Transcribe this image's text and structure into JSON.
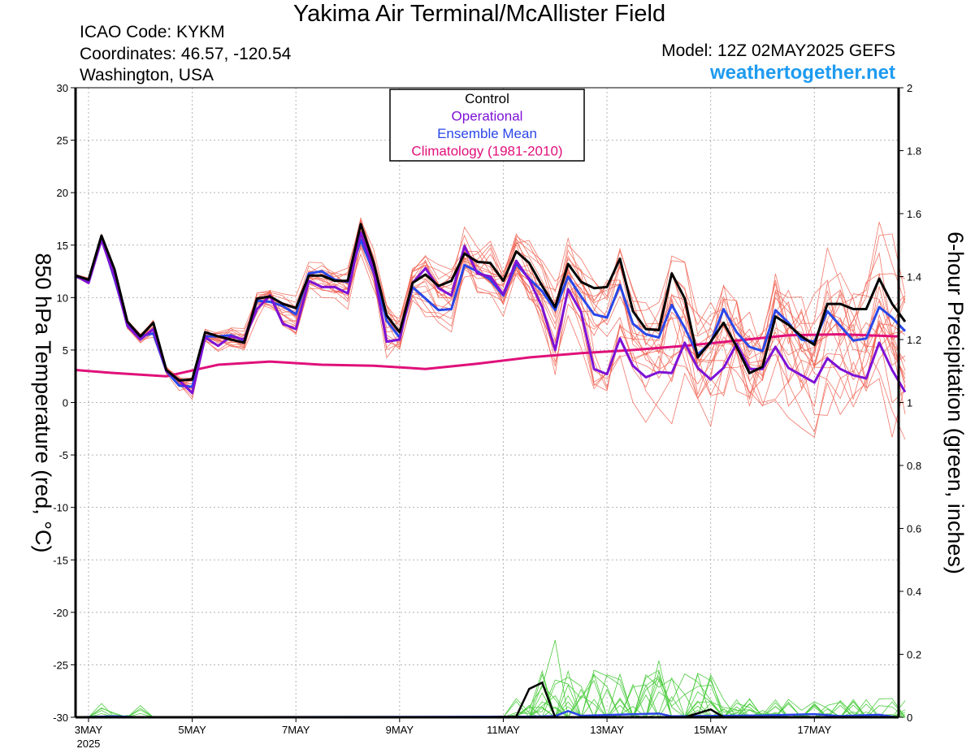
{
  "header": {
    "title": "Yakima Air Terminal/McAllister Field",
    "icao": "ICAO Code: KYKM",
    "coords": "Coordinates: 46.57, -120.54",
    "region": "Washington, USA",
    "model": "Model: 12Z 02MAY2025 GEFS",
    "site": "weathertogether.net"
  },
  "colors": {
    "control": "#000000",
    "operational": "#7d12d6",
    "mean": "#2a47e8",
    "climatology": "#e0107a",
    "members": "#f06050",
    "precip_members": "#4ccc3f"
  },
  "chart_data": {
    "type": "line",
    "title": "Yakima Air Terminal/McAllister Field",
    "ylabel": "850 hPa Temperature (red, °C)",
    "y2label": "6-hour Precipitation (green, inches)",
    "ylim": [
      -30,
      30
    ],
    "y2lim": [
      0,
      2
    ],
    "yticks": [
      -30,
      -25,
      -20,
      -15,
      -10,
      -5,
      0,
      5,
      10,
      15,
      20,
      25,
      30
    ],
    "y2ticks": [
      "0",
      "0.2",
      "0.4",
      "0.6",
      "0.8",
      "1",
      "1.2",
      "1.4",
      "1.6",
      "1.8",
      "2"
    ],
    "xlim": [
      2.75,
      18.625
    ],
    "xticks": [
      {
        "day": 3,
        "label": "3MAY",
        "sub": "2025"
      },
      {
        "day": 5,
        "label": "5MAY"
      },
      {
        "day": 7,
        "label": "7MAY"
      },
      {
        "day": 9,
        "label": "9MAY"
      },
      {
        "day": 11,
        "label": "11MAY"
      },
      {
        "day": 13,
        "label": "13MAY"
      },
      {
        "day": 15,
        "label": "15MAY"
      },
      {
        "day": 17,
        "label": "17MAY"
      }
    ],
    "grid": true,
    "legend_position": "top-center",
    "legend": [
      "Control",
      "Operational",
      "Ensemble Mean",
      "Climatology (1981-2010)"
    ],
    "x_start": 2.75,
    "x_step": 0.25,
    "series": [
      {
        "name": "Control",
        "values": [
          12.1,
          11.7,
          15.9,
          12.7,
          7.7,
          6.3,
          7.6,
          3.1,
          2.1,
          2.2,
          6.7,
          6.3,
          6.0,
          5.7,
          9.9,
          10.1,
          9.4,
          9.0,
          12.1,
          12.1,
          11.6,
          11.6,
          17.0,
          13.3,
          8.3,
          6.7,
          11.4,
          12.2,
          11.1,
          11.6,
          14.2,
          13.4,
          13.3,
          11.6,
          14.4,
          13.3,
          11.1,
          9.1,
          13.2,
          11.5,
          10.9,
          11.0,
          13.7,
          8.7,
          7.0,
          6.9,
          12.3,
          9.9,
          4.3,
          5.8,
          7.6,
          5.3,
          2.8,
          3.4,
          8.2,
          7.4,
          6.3,
          5.5,
          9.4,
          9.4,
          8.9,
          8.9,
          11.8,
          9.4,
          7.7
        ]
      },
      {
        "name": "Operational",
        "values": [
          12.1,
          11.4,
          15.5,
          12.0,
          7.3,
          6.0,
          7.0,
          3.0,
          2.1,
          0.9,
          6.2,
          5.4,
          6.3,
          6.0,
          8.9,
          10.2,
          7.5,
          7.0,
          11.6,
          11.0,
          11.0,
          10.4,
          16.2,
          12.6,
          5.8,
          6.0,
          11.4,
          12.8,
          10.9,
          10.2,
          14.9,
          12.3,
          12.0,
          10.3,
          13.5,
          11.7,
          9.1,
          5.0,
          10.8,
          8.6,
          3.2,
          2.7,
          6.1,
          3.5,
          2.4,
          2.9,
          2.8,
          5.7,
          3.3,
          2.2,
          3.3,
          5.6,
          3.2,
          3.2,
          5.3,
          3.3,
          2.6,
          1.9,
          4.2,
          3.2,
          2.6,
          2.3,
          5.7,
          3.1,
          1.0
        ]
      },
      {
        "name": "Ensemble Mean",
        "values": [
          12.0,
          11.6,
          15.7,
          11.8,
          7.5,
          6.3,
          6.6,
          3.0,
          1.6,
          1.5,
          6.3,
          6.3,
          6.4,
          5.9,
          9.7,
          9.6,
          9.2,
          8.4,
          12.3,
          12.5,
          11.7,
          11.5,
          15.5,
          12.4,
          7.8,
          6.2,
          11.0,
          9.9,
          8.8,
          8.9,
          13.1,
          12.5,
          11.7,
          10.2,
          13.2,
          11.8,
          10.6,
          8.8,
          12.0,
          10.1,
          8.4,
          8.1,
          11.2,
          7.5,
          6.5,
          6.2,
          9.3,
          7.1,
          4.6,
          5.7,
          8.9,
          6.7,
          5.3,
          4.9,
          8.8,
          7.6,
          6.0,
          5.8,
          8.7,
          7.3,
          5.9,
          6.1,
          9.1,
          8.1,
          6.8
        ]
      }
    ],
    "climatology": {
      "name": "Climatology (1981-2010)",
      "x": [
        2.75,
        3.5,
        4.5,
        5.5,
        6.5,
        7.5,
        8.5,
        9.5,
        10.5,
        11.5,
        12.5,
        13.5,
        14.5,
        15.5,
        16.5,
        17.5,
        18.6
      ],
      "values": [
        3.1,
        2.8,
        2.5,
        3.6,
        3.9,
        3.6,
        3.5,
        3.2,
        3.7,
        4.3,
        4.7,
        5.0,
        5.4,
        5.9,
        6.4,
        6.5,
        6.3
      ]
    },
    "precip_control": {
      "x": [
        2.75,
        10.5,
        11.25,
        11.5,
        11.75,
        12.0,
        13.75,
        14.5,
        15.0,
        15.25,
        18.6
      ],
      "values": [
        0,
        0,
        0.002,
        0.09,
        0.11,
        0,
        0,
        0,
        0.025,
        0,
        0
      ]
    },
    "precip_mean_peaks": {
      "x": [
        2.75,
        3.5,
        4.0,
        11.5,
        12.0,
        12.25,
        12.5,
        14.0,
        14.25,
        16.0,
        17.0,
        17.5,
        18.25,
        18.6
      ],
      "values": [
        0,
        0.003,
        0,
        0.002,
        0.004,
        0.02,
        0.005,
        0.012,
        0.003,
        0.006,
        0.01,
        0.004,
        0.008,
        0
      ]
    }
  }
}
